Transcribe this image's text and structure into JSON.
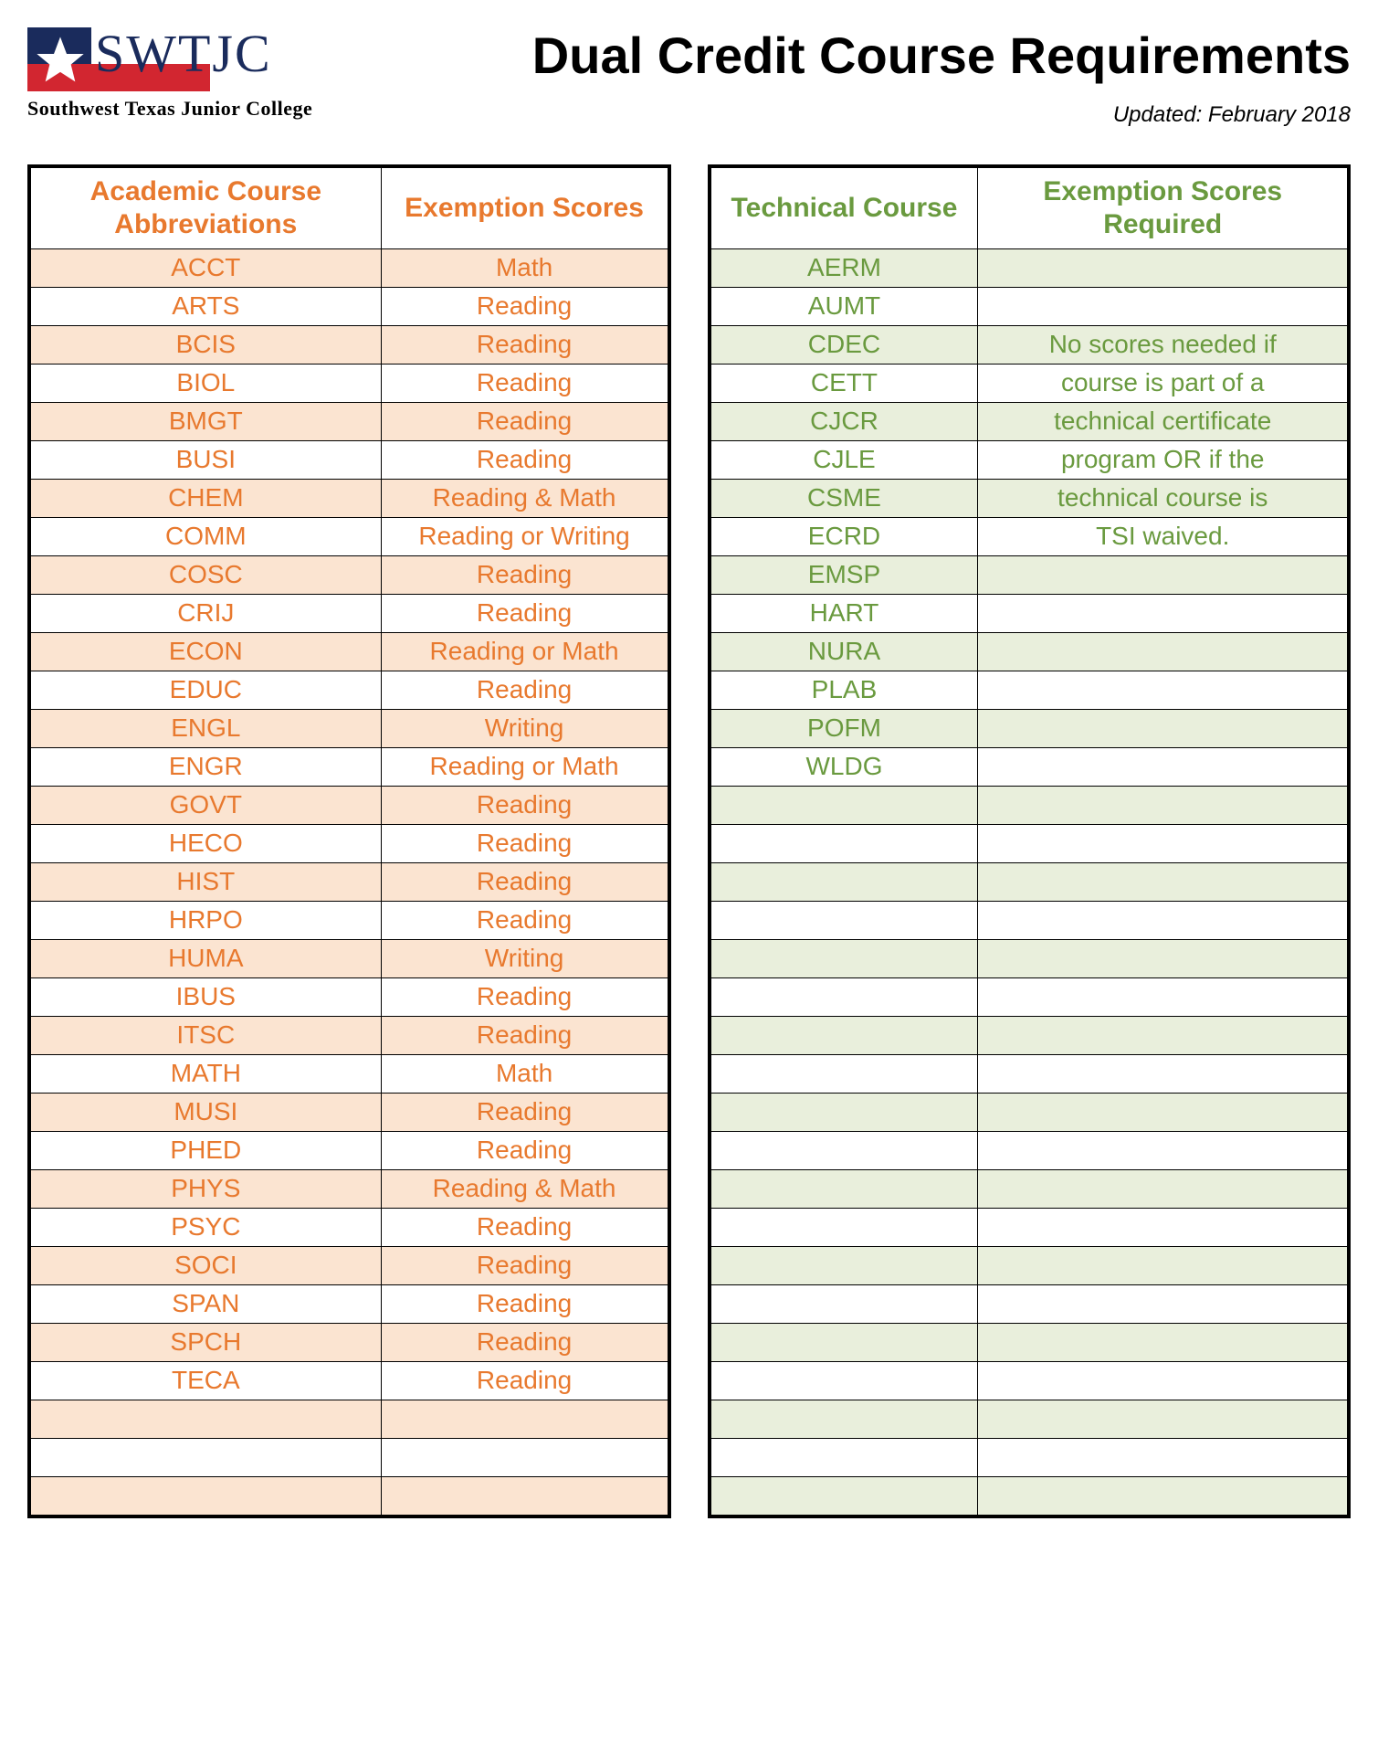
{
  "header": {
    "logo_text": "SWTJC",
    "tagline": "Southwest Texas Junior College",
    "title": "Dual Credit Course Requirements",
    "updated": "Updated: February 2018"
  },
  "colors": {
    "academic_text": "#e8792e",
    "technical_text": "#6a9a3f",
    "academic_stripe": "#fbe4d1",
    "technical_stripe": "#e9efdc",
    "logo_navy": "#1a2b5c",
    "logo_red": "#d22630",
    "border": "#000000",
    "background": "#ffffff"
  },
  "typography": {
    "title_fontsize_pt": 42,
    "header_fontsize_pt": 22,
    "cell_fontsize_pt": 21,
    "tagline_fontsize_pt": 16,
    "updated_fontsize_pt": 18,
    "body_font": "Arial",
    "logo_font": "Times New Roman"
  },
  "academic_table": {
    "type": "table",
    "header_col1": "Academic Course Abbreviations",
    "header_col2": "Exemption Scores",
    "rows": [
      {
        "abbr": "ACCT",
        "score": "Math"
      },
      {
        "abbr": "ARTS",
        "score": "Reading"
      },
      {
        "abbr": "BCIS",
        "score": "Reading"
      },
      {
        "abbr": "BIOL",
        "score": "Reading"
      },
      {
        "abbr": "BMGT",
        "score": "Reading"
      },
      {
        "abbr": "BUSI",
        "score": "Reading"
      },
      {
        "abbr": "CHEM",
        "score": "Reading & Math"
      },
      {
        "abbr": "COMM",
        "score": "Reading or Writing"
      },
      {
        "abbr": "COSC",
        "score": "Reading"
      },
      {
        "abbr": "CRIJ",
        "score": "Reading"
      },
      {
        "abbr": "ECON",
        "score": "Reading or Math"
      },
      {
        "abbr": "EDUC",
        "score": "Reading"
      },
      {
        "abbr": "ENGL",
        "score": "Writing"
      },
      {
        "abbr": "ENGR",
        "score": "Reading or Math"
      },
      {
        "abbr": "GOVT",
        "score": "Reading"
      },
      {
        "abbr": "HECO",
        "score": "Reading"
      },
      {
        "abbr": "HIST",
        "score": "Reading"
      },
      {
        "abbr": "HRPO",
        "score": "Reading"
      },
      {
        "abbr": "HUMA",
        "score": "Writing"
      },
      {
        "abbr": "IBUS",
        "score": "Reading"
      },
      {
        "abbr": "ITSC",
        "score": "Reading"
      },
      {
        "abbr": "MATH",
        "score": "Math"
      },
      {
        "abbr": "MUSI",
        "score": "Reading"
      },
      {
        "abbr": "PHED",
        "score": "Reading"
      },
      {
        "abbr": "PHYS",
        "score": "Reading & Math"
      },
      {
        "abbr": "PSYC",
        "score": "Reading"
      },
      {
        "abbr": "SOCI",
        "score": "Reading"
      },
      {
        "abbr": "SPAN",
        "score": "Reading"
      },
      {
        "abbr": "SPCH",
        "score": "Reading"
      },
      {
        "abbr": "TECA",
        "score": "Reading"
      },
      {
        "abbr": "",
        "score": ""
      },
      {
        "abbr": "",
        "score": ""
      },
      {
        "abbr": "",
        "score": ""
      }
    ]
  },
  "technical_table": {
    "type": "table",
    "header_col1": "Technical Course",
    "header_col2": "Exemption Scores Required",
    "rows": [
      {
        "abbr": "AERM",
        "note": ""
      },
      {
        "abbr": "AUMT",
        "note": ""
      },
      {
        "abbr": "CDEC",
        "note": "No scores needed if"
      },
      {
        "abbr": "CETT",
        "note": "course is part of a"
      },
      {
        "abbr": "CJCR",
        "note": "technical certificate"
      },
      {
        "abbr": "CJLE",
        "note": "program OR if the"
      },
      {
        "abbr": "CSME",
        "note": "technical course is"
      },
      {
        "abbr": "ECRD",
        "note": "TSI waived."
      },
      {
        "abbr": "EMSP",
        "note": ""
      },
      {
        "abbr": "HART",
        "note": ""
      },
      {
        "abbr": "NURA",
        "note": ""
      },
      {
        "abbr": "PLAB",
        "note": ""
      },
      {
        "abbr": "POFM",
        "note": ""
      },
      {
        "abbr": "WLDG",
        "note": ""
      },
      {
        "abbr": "",
        "note": ""
      },
      {
        "abbr": "",
        "note": ""
      },
      {
        "abbr": "",
        "note": ""
      },
      {
        "abbr": "",
        "note": ""
      },
      {
        "abbr": "",
        "note": ""
      },
      {
        "abbr": "",
        "note": ""
      },
      {
        "abbr": "",
        "note": ""
      },
      {
        "abbr": "",
        "note": ""
      },
      {
        "abbr": "",
        "note": ""
      },
      {
        "abbr": "",
        "note": ""
      },
      {
        "abbr": "",
        "note": ""
      },
      {
        "abbr": "",
        "note": ""
      },
      {
        "abbr": "",
        "note": ""
      },
      {
        "abbr": "",
        "note": ""
      },
      {
        "abbr": "",
        "note": ""
      },
      {
        "abbr": "",
        "note": ""
      },
      {
        "abbr": "",
        "note": ""
      },
      {
        "abbr": "",
        "note": ""
      },
      {
        "abbr": "",
        "note": ""
      }
    ]
  }
}
